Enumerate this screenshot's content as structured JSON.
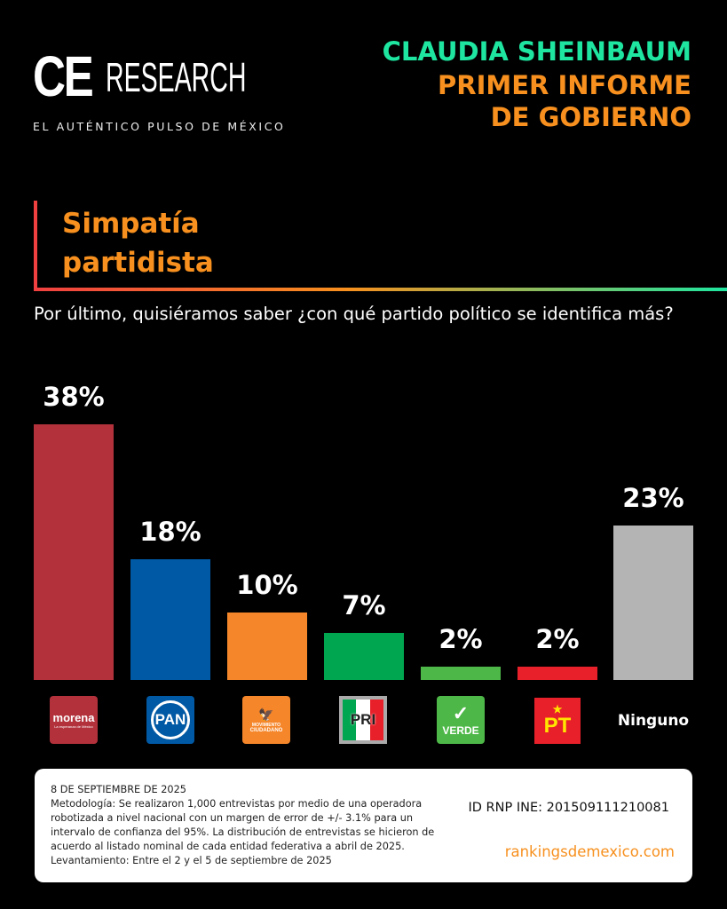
{
  "brand": {
    "logo_ce": "CE",
    "logo_research": "RESEARCH",
    "tagline": "EL AUTÉNTICO PULSO DE MÉXICO"
  },
  "header": {
    "line1": "CLAUDIA SHEINBAUM",
    "line2": "PRIMER INFORME",
    "line3": "DE GOBIERNO"
  },
  "section_title": {
    "line1": "Simpatía",
    "line2": "partidista"
  },
  "question": "Por último, quisiéramos saber ¿con qué partido político se identifica más?",
  "colors": {
    "accent_green": "#1ee6a0",
    "accent_orange": "#f7901e"
  },
  "chart_data": {
    "type": "bar",
    "categories": [
      "morena",
      "PAN",
      "Movimiento Ciudadano",
      "PRI",
      "Verde",
      "PT",
      "Ninguno"
    ],
    "values": [
      38,
      18,
      10,
      7,
      2,
      2,
      23
    ],
    "labels": [
      "38%",
      "18%",
      "10%",
      "7%",
      "2%",
      "2%",
      "23%"
    ],
    "colors": [
      "#b2313b",
      "#0059a4",
      "#f5862a",
      "#00a650",
      "#4db848",
      "#e8202a",
      "#b4b4b4"
    ],
    "ylim": [
      0,
      40
    ],
    "grid": false
  },
  "logos": {
    "morena": {
      "name": "morena",
      "sub": "La esperanza de México"
    },
    "pan": {
      "name": "PAN"
    },
    "mc": {
      "name": "MOVIMIENTO",
      "sub": "CIUDADANO"
    },
    "pri": {
      "name": "PRI"
    },
    "verde": {
      "name": "VERDE"
    },
    "pt": {
      "name": "PT"
    },
    "ninguno": "Ninguno"
  },
  "footer": {
    "date": "8 DE SEPTIEMBRE DE 2025",
    "methodology": "Metodología: Se realizaron 1,000 entrevistas por medio de una operadora robotizada a nivel nacional con un margen de error de +/- 3.1% para un intervalo de confianza del 95%. La distribución de entrevistas se hicieron de acuerdo al listado nominal de cada entidad federativa a abril de 2025.",
    "fieldwork": "Levantamiento: Entre el 2 y el 5 de septiembre de 2025",
    "rnp": "ID RNP INE: 201509111210081",
    "website": "rankingsdemexico.com"
  }
}
